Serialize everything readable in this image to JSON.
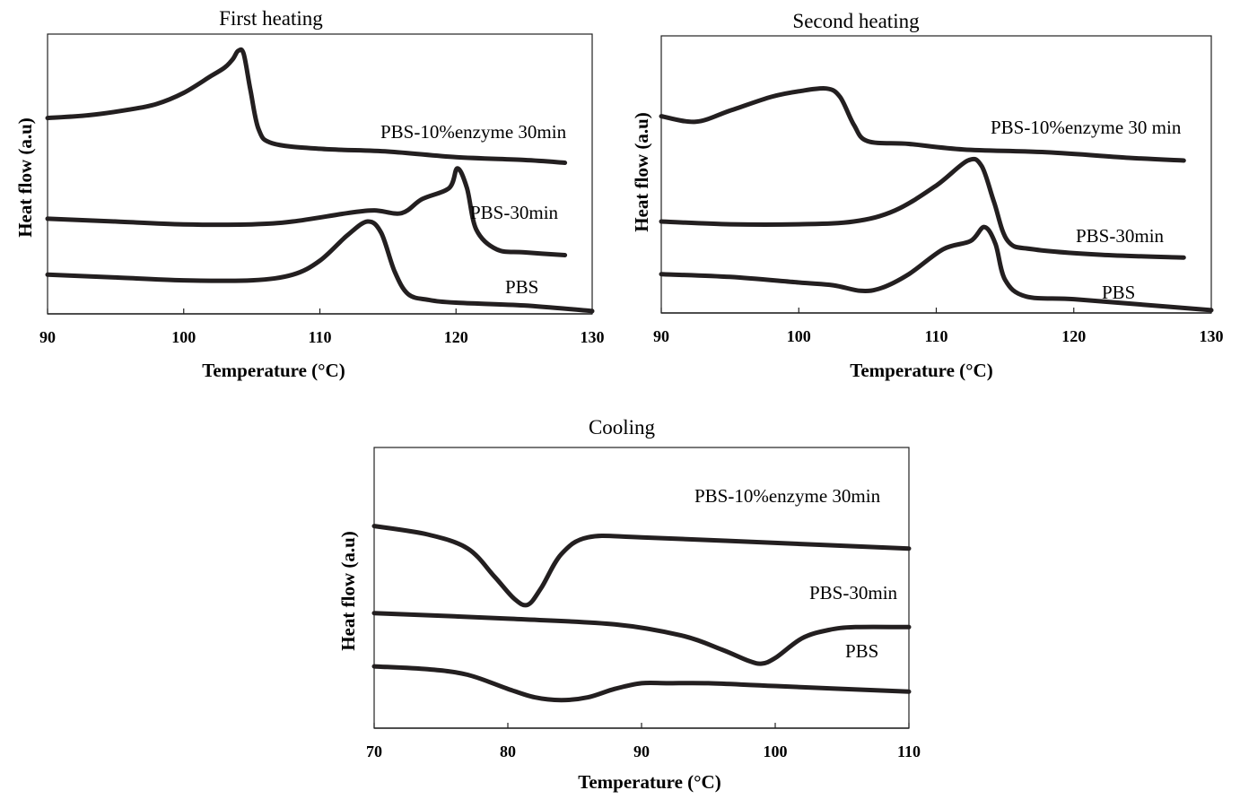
{
  "chart_data": [
    {
      "type": "line",
      "title": "First heating",
      "xlabel": "Temperature (°C)",
      "ylabel": "Heat flow (a.u)",
      "xlim": [
        90,
        130
      ],
      "xticks": [
        90,
        100,
        110,
        120,
        130
      ],
      "y_units": "arbitrary (stacked offset, top = higher)",
      "ylim": [
        0,
        1
      ],
      "yticks": "none",
      "grid": false,
      "legend": "none (inline labels)",
      "series": [
        {
          "name": "PBS-10%enzyme 30min",
          "x": [
            90,
            93,
            96,
            98,
            100,
            102,
            103,
            103.6,
            104,
            104.4,
            104.9,
            105.5,
            106.5,
            110,
            115,
            120,
            125,
            128
          ],
          "y": [
            0.7,
            0.71,
            0.73,
            0.75,
            0.79,
            0.85,
            0.88,
            0.91,
            0.94,
            0.93,
            0.8,
            0.66,
            0.61,
            0.59,
            0.58,
            0.56,
            0.55,
            0.54
          ]
        },
        {
          "name": "PBS-30min",
          "x": [
            90,
            95,
            100,
            105,
            108,
            112,
            114,
            116,
            117.5,
            119.5,
            120.1,
            120.8,
            121.5,
            123,
            125,
            128
          ],
          "y": [
            0.34,
            0.33,
            0.32,
            0.32,
            0.33,
            0.36,
            0.37,
            0.36,
            0.41,
            0.45,
            0.52,
            0.45,
            0.3,
            0.23,
            0.22,
            0.21
          ]
        },
        {
          "name": "PBS",
          "x": [
            90,
            95,
            100,
            105,
            108,
            110,
            112,
            113.5,
            114.5,
            115.5,
            116.5,
            118,
            120,
            125,
            130
          ],
          "y": [
            0.14,
            0.13,
            0.12,
            0.12,
            0.14,
            0.19,
            0.28,
            0.33,
            0.29,
            0.15,
            0.07,
            0.05,
            0.04,
            0.03,
            0.01
          ]
        }
      ],
      "annotations": [
        "PBS-10%enzyme 30min",
        "PBS-30min",
        "PBS"
      ]
    },
    {
      "type": "line",
      "title": "Second heating",
      "xlabel": "Temperature (°C)",
      "ylabel": "Heat flow (a.u)",
      "xlim": [
        90,
        130
      ],
      "xticks": [
        90,
        100,
        110,
        120,
        130
      ],
      "y_units": "arbitrary (stacked offset, top = higher)",
      "ylim": [
        0,
        1
      ],
      "yticks": "none",
      "grid": false,
      "legend": "none (inline labels)",
      "series": [
        {
          "name": "PBS-10%enzyme 30 min",
          "x": [
            90,
            92.5,
            95,
            98,
            100,
            102,
            103,
            104,
            105,
            108,
            112,
            118,
            124,
            128
          ],
          "y": [
            0.71,
            0.69,
            0.73,
            0.78,
            0.8,
            0.81,
            0.78,
            0.68,
            0.62,
            0.61,
            0.59,
            0.58,
            0.56,
            0.55
          ]
        },
        {
          "name": "PBS-30min",
          "x": [
            90,
            95,
            100,
            104,
            107,
            110,
            112.3,
            113.3,
            114.2,
            115.2,
            117,
            122,
            128
          ],
          "y": [
            0.33,
            0.32,
            0.32,
            0.33,
            0.37,
            0.46,
            0.55,
            0.53,
            0.4,
            0.26,
            0.23,
            0.21,
            0.2
          ]
        },
        {
          "name": "PBS",
          "x": [
            90,
            95,
            100,
            102.5,
            104.5,
            106,
            108,
            110.5,
            112.5,
            113.5,
            114.3,
            115,
            116.5,
            120,
            125,
            130
          ],
          "y": [
            0.14,
            0.13,
            0.11,
            0.1,
            0.08,
            0.09,
            0.14,
            0.23,
            0.26,
            0.31,
            0.25,
            0.12,
            0.06,
            0.05,
            0.03,
            0.01
          ]
        }
      ],
      "annotations": [
        "PBS-10%enzyme 30 min",
        "PBS-30min",
        "PBS"
      ]
    },
    {
      "type": "line",
      "title": "Cooling",
      "xlabel": "Temperature (°C)",
      "ylabel": "Heat flow (a.u)",
      "xlim": [
        70,
        110
      ],
      "xticks": [
        70,
        80,
        90,
        100,
        110
      ],
      "y_units": "arbitrary (stacked offset, top = higher)",
      "ylim": [
        0,
        1
      ],
      "yticks": "none",
      "grid": false,
      "legend": "none (inline labels)",
      "series": [
        {
          "name": "PBS-10%enzyme 30min",
          "x": [
            70,
            74,
            77,
            79,
            80.5,
            81.5,
            82.5,
            84,
            86,
            90,
            100,
            110
          ],
          "y": [
            0.72,
            0.69,
            0.64,
            0.54,
            0.46,
            0.44,
            0.5,
            0.62,
            0.68,
            0.68,
            0.66,
            0.64
          ]
        },
        {
          "name": "PBS-30min",
          "x": [
            70,
            80,
            88,
            93,
            96,
            98,
            99,
            100,
            102,
            104,
            106,
            110
          ],
          "y": [
            0.41,
            0.39,
            0.37,
            0.33,
            0.28,
            0.24,
            0.23,
            0.25,
            0.32,
            0.35,
            0.36,
            0.36
          ]
        },
        {
          "name": "PBS",
          "x": [
            70,
            74,
            77,
            80,
            82,
            84,
            86,
            88,
            90,
            92,
            95,
            100,
            110
          ],
          "y": [
            0.22,
            0.21,
            0.19,
            0.14,
            0.11,
            0.1,
            0.11,
            0.14,
            0.16,
            0.16,
            0.16,
            0.15,
            0.13
          ]
        }
      ],
      "annotations": [
        "PBS-10%enzyme 30min",
        "PBS-30min",
        "PBS"
      ]
    }
  ],
  "colors": {
    "curve": "#231f20",
    "axes": "#222222",
    "background": "#ffffff"
  }
}
